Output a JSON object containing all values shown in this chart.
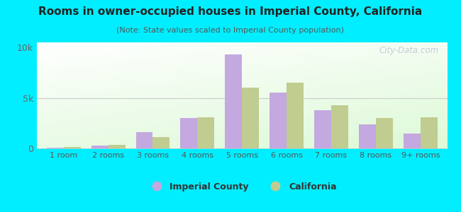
{
  "title": "Rooms in owner-occupied houses in Imperial County, California",
  "subtitle": "(Note: State values scaled to Imperial County population)",
  "categories": [
    "1 room",
    "2 rooms",
    "3 rooms",
    "4 rooms",
    "5 rooms",
    "6 rooms",
    "7 rooms",
    "8 rooms",
    "9+ rooms"
  ],
  "imperial_values": [
    100,
    300,
    1600,
    3000,
    9300,
    5500,
    3800,
    2400,
    1500
  ],
  "california_values": [
    150,
    350,
    1100,
    3100,
    6000,
    6500,
    4300,
    3000,
    3100
  ],
  "imperial_color": "#c4a8e0",
  "california_color": "#c0cc90",
  "background_outer": "#00eeff",
  "ylim": [
    0,
    10500
  ],
  "yticks": [
    0,
    5000,
    10000
  ],
  "ytick_labels": [
    "0",
    "5k",
    "10k"
  ],
  "bar_width": 0.38,
  "watermark": "City-Data.com",
  "legend_imperial": "Imperial County",
  "legend_california": "California"
}
